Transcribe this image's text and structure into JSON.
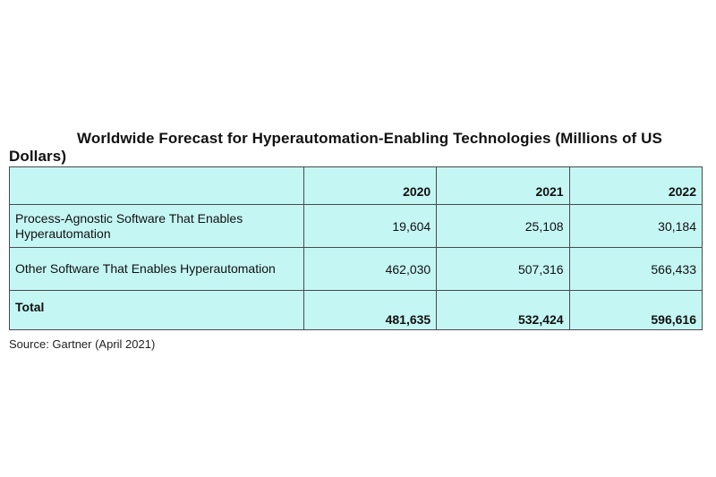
{
  "title": "Worldwide Forecast for Hyperautomation-Enabling Technologies (Millions of US Dollars)",
  "table": {
    "columns": [
      "",
      "2020",
      "2021",
      "2022"
    ],
    "rows": [
      {
        "label": "Process-Agnostic Software That Enables Hyperautomation",
        "values": [
          "19,604",
          "25,108",
          "30,184"
        ]
      },
      {
        "label": "Other Software That Enables Hyperautomation",
        "values": [
          "462,030",
          "507,316",
          "566,433"
        ]
      },
      {
        "label": "Total",
        "values": [
          "481,635",
          "532,424",
          "596,616"
        ]
      }
    ]
  },
  "source": "Source: Gartner (April 2021)",
  "colors": {
    "table_fill": "#c4f6f4",
    "border": "#4a4a4a"
  }
}
